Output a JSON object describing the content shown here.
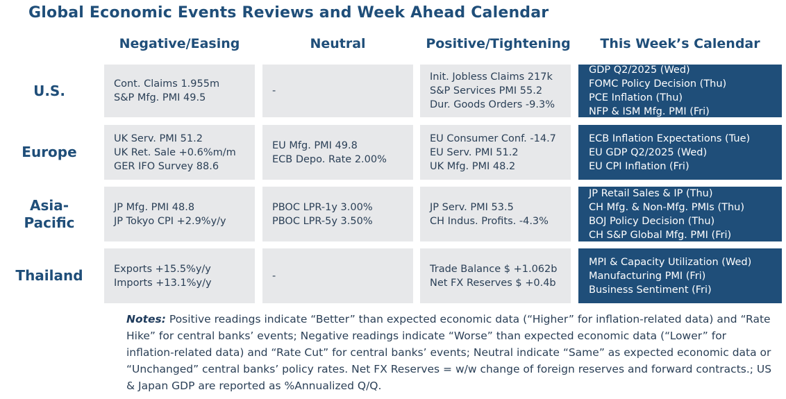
{
  "title": "Global Economic Events Reviews and Week Ahead Calendar",
  "columns": [
    "Negative/Easing",
    "Neutral",
    "Positive/Tightening",
    "This Week’s Calendar"
  ],
  "rows": [
    {
      "region_lines": [
        "U.S."
      ],
      "negative": [
        "Cont. Claims 1.955m",
        "S&P Mfg. PMI 49.5"
      ],
      "neutral": [
        "-"
      ],
      "positive": [
        "Init. Jobless Claims 217k",
        "S&P Services PMI 55.2",
        "Dur. Goods Orders -9.3%"
      ],
      "calendar": [
        "GDP Q2/2025 (Wed)",
        "FOMC Policy Decision (Thu)",
        "PCE Inflation (Thu)",
        "NFP & ISM Mfg. PMI (Fri)"
      ]
    },
    {
      "region_lines": [
        "Europe"
      ],
      "negative": [
        "UK Serv. PMI 51.2",
        "UK Ret. Sale +0.6%m/m",
        "GER IFO Survey 88.6"
      ],
      "neutral": [
        "EU Mfg. PMI 49.8",
        "ECB Depo. Rate 2.00%"
      ],
      "positive": [
        "EU Consumer Conf. -14.7",
        "EU Serv. PMI 51.2",
        "UK Mfg. PMI 48.2"
      ],
      "calendar": [
        "ECB Inflation Expectations (Tue)",
        "EU GDP Q2/2025 (Wed)",
        "EU CPI Inflation (Fri)"
      ]
    },
    {
      "region_lines": [
        "Asia-",
        "Pacific"
      ],
      "negative": [
        "JP Mfg. PMI 48.8",
        "JP Tokyo CPI +2.9%y/y"
      ],
      "neutral": [
        "PBOC LPR-1y 3.00%",
        "PBOC LPR-5y 3.50%"
      ],
      "positive": [
        "JP Serv. PMI 53.5",
        "CH Indus. Profits. -4.3%"
      ],
      "calendar": [
        "JP Retail Sales & IP (Thu)",
        "CH Mfg. & Non-Mfg. PMIs (Thu)",
        "BOJ Policy Decision (Thu)",
        "CH S&P Global Mfg. PMI (Fri)"
      ]
    },
    {
      "region_lines": [
        "Thailand"
      ],
      "negative": [
        "Exports +15.5%y/y",
        "Imports +13.1%y/y"
      ],
      "neutral": [
        "-"
      ],
      "positive": [
        "Trade Balance $ +1.062b",
        "Net FX Reserves $ +0.4b"
      ],
      "calendar": [
        "MPI & Capacity Utilization (Wed)",
        "Manufacturing PMI (Fri)",
        "Business Sentiment (Fri)"
      ]
    }
  ],
  "notes": {
    "label": "Notes:",
    "text": " Positive readings indicate “Better” than expected economic data (“Higher” for inflation-related data) and “Rate Hike” for central banks’ events; Negative readings indicate “Worse” than expected economic data (“Lower” for inflation-related data) and “Rate Cut” for central banks’ events; Neutral indicate “Same” as expected economic data or “Unchanged” central banks’ policy rates. Net FX Reserves = w/w change of foreign reserves and forward contracts.; US & Japan GDP are reported as %Annualized Q/Q."
  },
  "colors": {
    "heading": "#1f4e79",
    "cell_bg": "#e7e8ea",
    "calendar_bg": "#1f4e79",
    "calendar_text": "#ffffff"
  }
}
